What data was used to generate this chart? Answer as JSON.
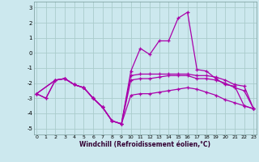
{
  "background_color": "#cce8ee",
  "grid_color": "#aacccc",
  "line_color": "#aa00aa",
  "xlim": [
    -0.3,
    23.3
  ],
  "ylim": [
    -5.4,
    3.4
  ],
  "yticks": [
    -5,
    -4,
    -3,
    -2,
    -1,
    0,
    1,
    2,
    3
  ],
  "xticks": [
    0,
    1,
    2,
    3,
    4,
    5,
    6,
    7,
    8,
    9,
    10,
    11,
    12,
    13,
    14,
    15,
    16,
    17,
    18,
    19,
    20,
    21,
    22,
    23
  ],
  "xlabel": "Windchill (Refroidissement éolien,°C)",
  "series": [
    {
      "x": [
        0,
        1,
        2,
        3,
        4,
        5,
        6,
        7,
        8,
        9,
        10,
        11,
        12,
        13,
        14,
        15,
        16,
        17,
        18,
        19,
        20,
        21,
        22,
        23
      ],
      "y": [
        -2.7,
        -3.0,
        -1.8,
        -1.7,
        -2.1,
        -2.3,
        -3.0,
        -3.6,
        -4.5,
        -4.7,
        -1.2,
        0.3,
        -0.1,
        0.8,
        0.8,
        2.3,
        2.7,
        -1.1,
        -1.2,
        -1.7,
        -2.1,
        -2.2,
        -3.5,
        -3.7
      ]
    },
    {
      "x": [
        0,
        2,
        3,
        4,
        5,
        6,
        7,
        8,
        9,
        10,
        11,
        12,
        13,
        14,
        15,
        16,
        17,
        18,
        19,
        20,
        21,
        22,
        23
      ],
      "y": [
        -2.7,
        -1.8,
        -1.7,
        -2.1,
        -2.3,
        -3.0,
        -3.6,
        -4.5,
        -4.7,
        -1.5,
        -1.4,
        -1.4,
        -1.4,
        -1.4,
        -1.4,
        -1.4,
        -1.5,
        -1.5,
        -1.6,
        -1.8,
        -2.1,
        -2.2,
        -3.7
      ]
    },
    {
      "x": [
        0,
        2,
        3,
        4,
        5,
        6,
        7,
        8,
        9,
        10,
        11,
        12,
        13,
        14,
        15,
        16,
        17,
        18,
        19,
        20,
        21,
        22,
        23
      ],
      "y": [
        -2.7,
        -1.8,
        -1.7,
        -2.1,
        -2.3,
        -3.0,
        -3.6,
        -4.5,
        -4.7,
        -1.8,
        -1.7,
        -1.7,
        -1.6,
        -1.5,
        -1.5,
        -1.5,
        -1.7,
        -1.7,
        -1.8,
        -2.0,
        -2.3,
        -2.5,
        -3.7
      ]
    },
    {
      "x": [
        0,
        1,
        2,
        3,
        4,
        5,
        6,
        7,
        8,
        9,
        10,
        11,
        12,
        13,
        14,
        15,
        16,
        17,
        18,
        19,
        20,
        21,
        22,
        23
      ],
      "y": [
        -2.7,
        -3.0,
        -1.8,
        -1.7,
        -2.1,
        -2.3,
        -3.0,
        -3.6,
        -4.5,
        -4.7,
        -2.8,
        -2.7,
        -2.7,
        -2.6,
        -2.5,
        -2.4,
        -2.3,
        -2.4,
        -2.6,
        -2.8,
        -3.1,
        -3.3,
        -3.5,
        -3.7
      ]
    }
  ]
}
